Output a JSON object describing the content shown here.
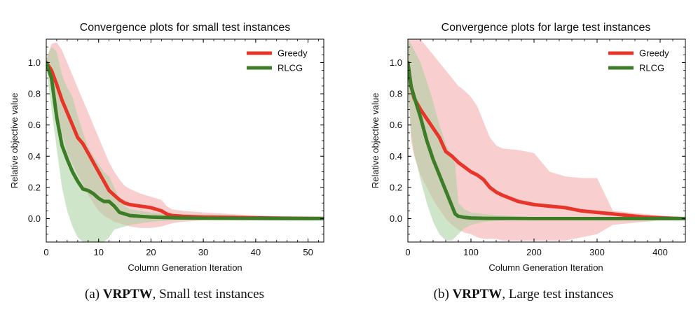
{
  "chart_data": [
    {
      "type": "line",
      "title": "Convergence plots for small test instances",
      "xlabel": "Column Generation Iteration",
      "ylabel": "Relative objective value",
      "xlim": [
        0,
        53
      ],
      "ylim": [
        -0.15,
        1.15
      ],
      "xticks": [
        0,
        10,
        20,
        30,
        40,
        50
      ],
      "yticks": [
        0.0,
        0.2,
        0.4,
        0.6,
        0.8,
        1.0
      ],
      "grid": false,
      "legend": "top-right",
      "series": [
        {
          "name": "Greedy",
          "color": "#e8352a",
          "band_color": "#f4a6a6",
          "x": [
            0,
            1,
            2,
            3,
            4,
            5,
            6,
            7,
            8,
            9,
            10,
            11,
            12,
            13,
            14,
            15,
            16,
            18,
            20,
            22,
            23,
            24,
            26,
            30,
            35,
            40,
            45,
            50,
            53
          ],
          "y": [
            1.0,
            0.95,
            0.86,
            0.76,
            0.68,
            0.6,
            0.52,
            0.48,
            0.42,
            0.36,
            0.3,
            0.24,
            0.18,
            0.15,
            0.12,
            0.1,
            0.09,
            0.08,
            0.07,
            0.05,
            0.03,
            0.02,
            0.015,
            0.01,
            0.008,
            0.005,
            0.003,
            0.002,
            0.001
          ],
          "upper": [
            1.02,
            1.12,
            1.13,
            1.08,
            1.0,
            0.92,
            0.84,
            0.76,
            0.68,
            0.6,
            0.52,
            0.44,
            0.36,
            0.3,
            0.25,
            0.21,
            0.19,
            0.16,
            0.14,
            0.12,
            0.08,
            0.06,
            0.05,
            0.04,
            0.03,
            0.02,
            0.015,
            0.01,
            0.01
          ],
          "lower": [
            0.98,
            0.85,
            0.7,
            0.55,
            0.42,
            0.35,
            0.28,
            0.22,
            0.15,
            0.1,
            0.05,
            0.02,
            0.0,
            -0.02,
            -0.03,
            -0.04,
            -0.05,
            -0.06,
            -0.06,
            -0.05,
            -0.04,
            -0.03,
            -0.02,
            -0.01,
            -0.01,
            -0.01,
            -0.01,
            -0.01,
            -0.01
          ]
        },
        {
          "name": "RLCG",
          "color": "#3d7d27",
          "band_color": "#a8cf9c",
          "x": [
            0,
            1,
            2,
            3,
            4,
            5,
            6,
            7,
            8,
            9,
            10,
            11,
            12,
            13,
            14,
            15,
            16,
            18,
            20,
            25,
            30,
            40,
            50,
            53
          ],
          "y": [
            1.0,
            0.9,
            0.65,
            0.47,
            0.38,
            0.3,
            0.24,
            0.19,
            0.18,
            0.16,
            0.13,
            0.11,
            0.11,
            0.08,
            0.04,
            0.03,
            0.02,
            0.015,
            0.01,
            0.005,
            0.003,
            0.001,
            0.0,
            0.0
          ],
          "upper": [
            1.02,
            1.1,
            1.07,
            0.92,
            0.84,
            0.78,
            0.66,
            0.55,
            0.46,
            0.4,
            0.35,
            0.3,
            0.27,
            0.2,
            0.12,
            0.08,
            0.06,
            0.05,
            0.04,
            0.03,
            0.02,
            0.01,
            0.01,
            0.01
          ],
          "lower": [
            0.98,
            0.7,
            0.45,
            0.2,
            0.05,
            -0.05,
            -0.12,
            -0.15,
            -0.15,
            -0.15,
            -0.15,
            -0.15,
            -0.12,
            -0.07,
            -0.06,
            -0.05,
            -0.04,
            -0.03,
            -0.02,
            -0.01,
            -0.01,
            -0.005,
            -0.005,
            -0.005
          ]
        }
      ]
    },
    {
      "type": "line",
      "title": "Convergence plots for large test instances",
      "xlabel": "Column Generation Iteration",
      "ylabel": "Relative objective value",
      "xlim": [
        0,
        440
      ],
      "ylim": [
        -0.15,
        1.15
      ],
      "xticks": [
        0,
        100,
        200,
        300,
        400
      ],
      "yticks": [
        0.0,
        0.2,
        0.4,
        0.6,
        0.8,
        1.0
      ],
      "grid": false,
      "legend": "top-right",
      "series": [
        {
          "name": "Greedy",
          "color": "#e8352a",
          "band_color": "#f4a6a6",
          "x": [
            0,
            5,
            10,
            20,
            30,
            40,
            50,
            60,
            70,
            80,
            90,
            100,
            110,
            120,
            130,
            140,
            150,
            175,
            200,
            225,
            250,
            275,
            300,
            325,
            350,
            375,
            400,
            425,
            440
          ],
          "y": [
            1.0,
            0.85,
            0.77,
            0.7,
            0.64,
            0.58,
            0.52,
            0.43,
            0.4,
            0.36,
            0.33,
            0.3,
            0.28,
            0.25,
            0.2,
            0.17,
            0.15,
            0.11,
            0.09,
            0.08,
            0.07,
            0.05,
            0.04,
            0.03,
            0.02,
            0.01,
            0.005,
            0.002,
            0.0
          ],
          "upper": [
            1.15,
            1.15,
            1.15,
            1.15,
            1.1,
            1.05,
            1.0,
            0.95,
            0.9,
            0.85,
            0.82,
            0.78,
            0.72,
            0.62,
            0.52,
            0.47,
            0.45,
            0.44,
            0.42,
            0.3,
            0.27,
            0.26,
            0.26,
            0.05,
            0.04,
            0.03,
            0.02,
            0.01,
            0.01
          ],
          "lower": [
            0.9,
            0.5,
            0.4,
            0.28,
            0.2,
            0.12,
            0.06,
            0.0,
            -0.04,
            -0.07,
            -0.09,
            -0.1,
            -0.12,
            -0.13,
            -0.13,
            -0.13,
            -0.14,
            -0.14,
            -0.14,
            -0.14,
            -0.14,
            -0.12,
            -0.1,
            -0.04,
            -0.03,
            -0.02,
            -0.01,
            -0.01,
            -0.01
          ]
        },
        {
          "name": "RLCG",
          "color": "#3d7d27",
          "band_color": "#a8cf9c",
          "x": [
            0,
            5,
            10,
            20,
            30,
            40,
            50,
            60,
            70,
            75,
            80,
            90,
            100,
            120,
            150,
            200,
            300,
            400,
            440
          ],
          "y": [
            1.0,
            0.85,
            0.78,
            0.65,
            0.5,
            0.38,
            0.28,
            0.18,
            0.08,
            0.03,
            0.015,
            0.008,
            0.004,
            0.002,
            0.001,
            0.0,
            0.0,
            0.0,
            0.0
          ],
          "upper": [
            1.15,
            1.12,
            1.08,
            1.0,
            0.88,
            0.75,
            0.6,
            0.48,
            0.4,
            0.35,
            0.1,
            0.06,
            0.04,
            0.03,
            0.02,
            0.01,
            0.01,
            0.005,
            0.005
          ],
          "lower": [
            0.85,
            0.55,
            0.42,
            0.25,
            0.1,
            -0.02,
            -0.1,
            -0.14,
            -0.14,
            -0.12,
            -0.1,
            -0.06,
            -0.04,
            -0.02,
            -0.01,
            -0.005,
            -0.005,
            -0.005,
            -0.005
          ]
        }
      ]
    }
  ],
  "captions": [
    {
      "prefix": "(a) ",
      "bold": "VRPTW",
      "rest": ", Small test instances"
    },
    {
      "prefix": "(b) ",
      "bold": "VRPTW",
      "rest": ", Large test instances"
    }
  ]
}
